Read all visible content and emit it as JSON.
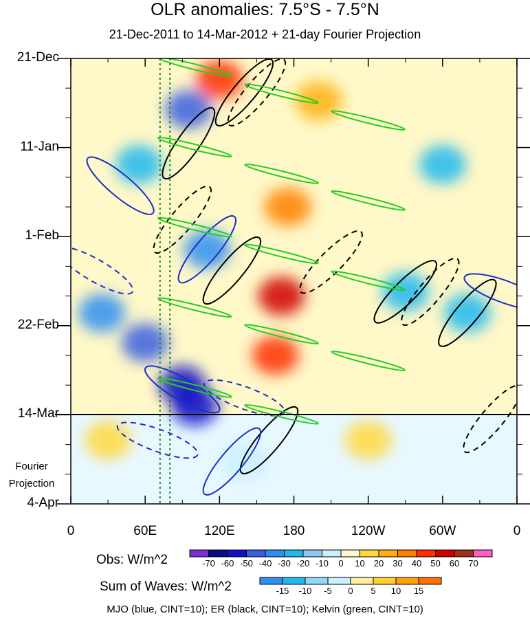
{
  "chart_data": {
    "type": "heatmap",
    "title": "OLR anomalies: 7.5°S - 7.5°N",
    "subtitle": "21-Dec-2011 to 14-Mar-2012 + 21-day Fourier Projection",
    "x_axis": {
      "ticks": [
        "0",
        "60E",
        "120E",
        "180",
        "120W",
        "60W",
        "0"
      ],
      "longitudes": [
        0,
        60,
        120,
        180,
        240,
        300,
        360
      ],
      "range": [
        0,
        360
      ]
    },
    "y_axis": {
      "ticks": [
        "21-Dec",
        "11-Jan",
        "1-Feb",
        "22-Feb",
        "14-Mar",
        "4-Apr"
      ],
      "day_offsets": [
        0,
        21,
        42,
        63,
        84,
        105
      ],
      "inverted": true
    },
    "projection_label": [
      "Fourier",
      "Projection"
    ],
    "projection_start": "14-Mar",
    "obs_colorbar": {
      "label": "Obs: W/m^2",
      "levels": [
        -70,
        -60,
        -50,
        -40,
        -30,
        -20,
        -10,
        0,
        10,
        20,
        30,
        40,
        50,
        60,
        70
      ],
      "colors": [
        "#7b2fd8",
        "#0a0a8c",
        "#1010c8",
        "#3a5fe0",
        "#2f8ff0",
        "#21b8f0",
        "#8fc8f0",
        "#c8f0ff",
        "#fff8c8",
        "#ffd840",
        "#ffb010",
        "#ff8000",
        "#ff3000",
        "#d00000",
        "#a03020",
        "#ff60c0"
      ]
    },
    "waves_colorbar": {
      "label": "Sum of Waves: W/m^2",
      "levels": [
        -15,
        -10,
        -5,
        0,
        5,
        10,
        15
      ],
      "colors": [
        "#2f8ff0",
        "#21b8f0",
        "#8fd8f8",
        "#c8f0ff",
        "#fff0a0",
        "#ffd030",
        "#ffa010",
        "#ff7000"
      ]
    },
    "contours": "MJO (blue, CINT=10); ER (black, CINT=10); Kelvin (green, CINT=10)",
    "reference_lines": {
      "vertical_longitudes": [
        72,
        80
      ]
    },
    "anomaly_features": [
      {
        "lon": 170,
        "day": 56,
        "value": 50
      },
      {
        "lon": 165,
        "day": 70,
        "value": 45
      },
      {
        "lon": 120,
        "day": 5,
        "value": 40
      },
      {
        "lon": 175,
        "day": 35,
        "value": 30
      },
      {
        "lon": 95,
        "day": 12,
        "value": -45
      },
      {
        "lon": 110,
        "day": 45,
        "value": -35
      },
      {
        "lon": 90,
        "day": 77,
        "value": -60
      },
      {
        "lon": 60,
        "day": 67,
        "value": -50
      },
      {
        "lon": 100,
        "day": 82,
        "value": -55
      },
      {
        "lon": 25,
        "day": 60,
        "value": -35
      },
      {
        "lon": 55,
        "day": 25,
        "value": -25
      },
      {
        "lon": 270,
        "day": 55,
        "value": -30
      },
      {
        "lon": 320,
        "day": 60,
        "value": -30
      },
      {
        "lon": 300,
        "day": 25,
        "value": -25
      },
      {
        "lon": 200,
        "day": 10,
        "value": 20
      },
      {
        "lon": 240,
        "day": 90,
        "value": 10
      },
      {
        "lon": 140,
        "day": 95,
        "value": -10
      },
      {
        "lon": 30,
        "day": 90,
        "value": 15
      }
    ]
  }
}
